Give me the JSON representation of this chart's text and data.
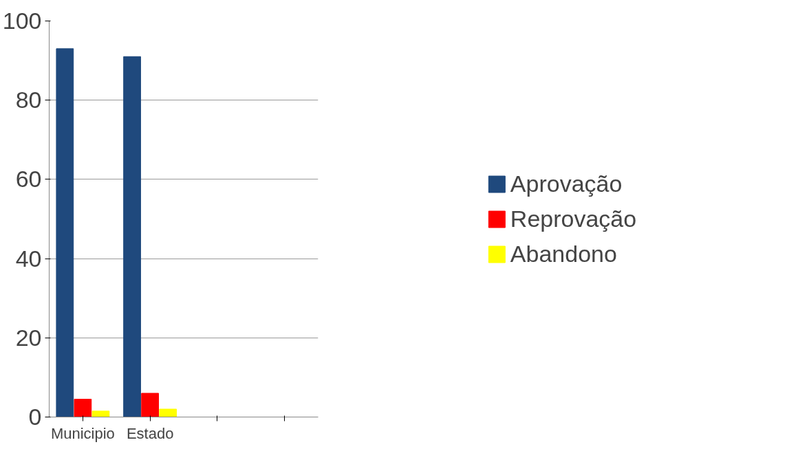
{
  "chart_data": {
    "type": "bar",
    "categories": [
      "Municipio",
      "Estado",
      null,
      null
    ],
    "series": [
      {
        "name": "Aprovação",
        "color": "#1f497d",
        "values": [
          93,
          91,
          null,
          null
        ]
      },
      {
        "name": "Reprovação",
        "color": "#ff0000",
        "values": [
          4.5,
          6,
          null,
          null
        ]
      },
      {
        "name": "Abandono",
        "color": "#ffff00",
        "values": [
          1.5,
          2,
          null,
          null
        ]
      }
    ],
    "ylim": [
      0,
      100
    ],
    "yticks": [
      0,
      20,
      40,
      60,
      80,
      100
    ],
    "grid": "y",
    "legend": "right"
  }
}
